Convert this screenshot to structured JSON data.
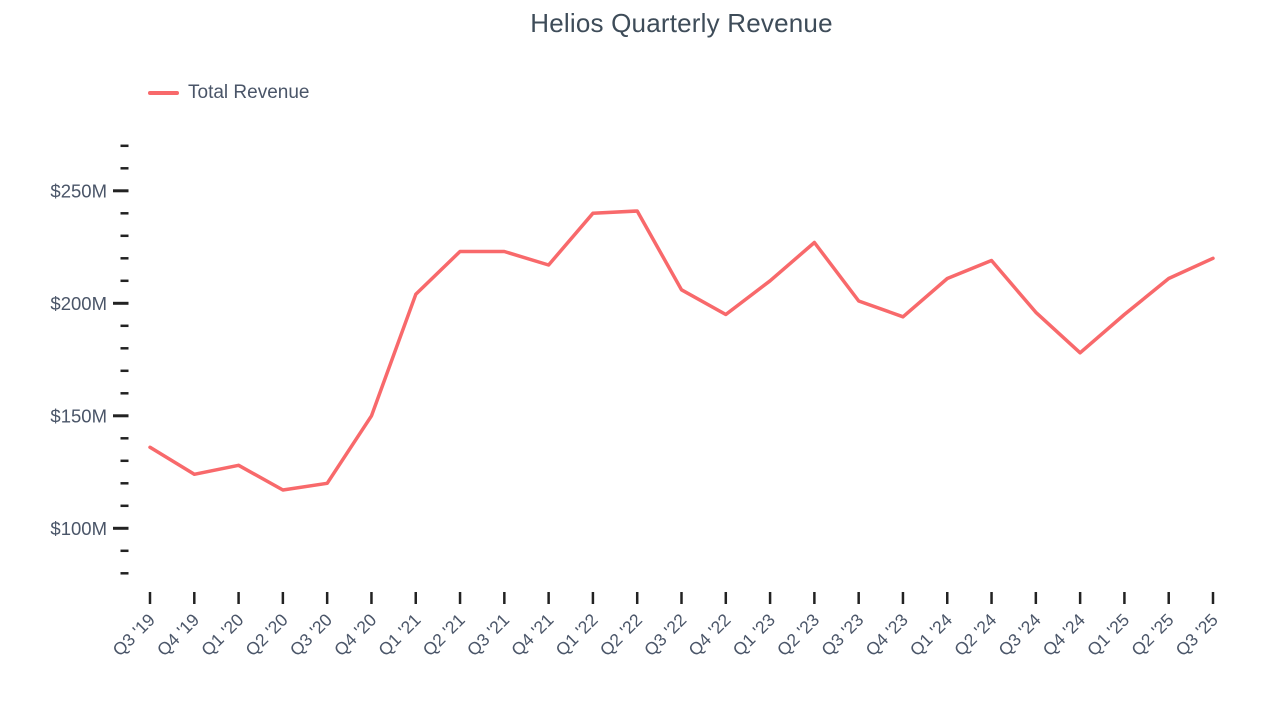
{
  "header": {
    "title": "Helios Quarterly Revenue"
  },
  "legend": {
    "items": [
      {
        "label": "Total Revenue",
        "color": "#F8696B"
      }
    ]
  },
  "colors": {
    "line": "#F8696B",
    "title_text": "#3E4C59",
    "axis_label_text": "#4A5568",
    "tick_mark": "#222222",
    "background": "#FFFFFF"
  },
  "chart_data": {
    "type": "line",
    "title": "Helios Quarterly Revenue",
    "categories": [
      "Q3 '19",
      "Q4 '19",
      "Q1 '20",
      "Q2 '20",
      "Q3 '20",
      "Q4 '20",
      "Q1 '21",
      "Q2 '21",
      "Q3 '21",
      "Q4 '21",
      "Q1 '22",
      "Q2 '22",
      "Q3 '22",
      "Q4 '22",
      "Q1 '23",
      "Q2 '23",
      "Q3 '23",
      "Q4 '23",
      "Q1 '24",
      "Q2 '24",
      "Q3 '24",
      "Q4 '24",
      "Q1 '25",
      "Q2 '25",
      "Q3 '25"
    ],
    "series": [
      {
        "name": "Total Revenue",
        "values": [
          136,
          124,
          128,
          117,
          120,
          150,
          204,
          223,
          223,
          217,
          240,
          241,
          206,
          195,
          210,
          227,
          201,
          194,
          211,
          219,
          196,
          178,
          195,
          211,
          220
        ]
      }
    ],
    "y_tick_values": [
      100,
      150,
      200,
      250
    ],
    "y_tick_labels": [
      "$100M",
      "$150M",
      "$200M",
      "$250M"
    ],
    "y_minor_tick_step": 10,
    "ylim": [
      75,
      270
    ],
    "xlabel": "",
    "ylabel": "",
    "grid": "off",
    "legend_position": "top-left",
    "x_label_rotation_deg": -45
  }
}
